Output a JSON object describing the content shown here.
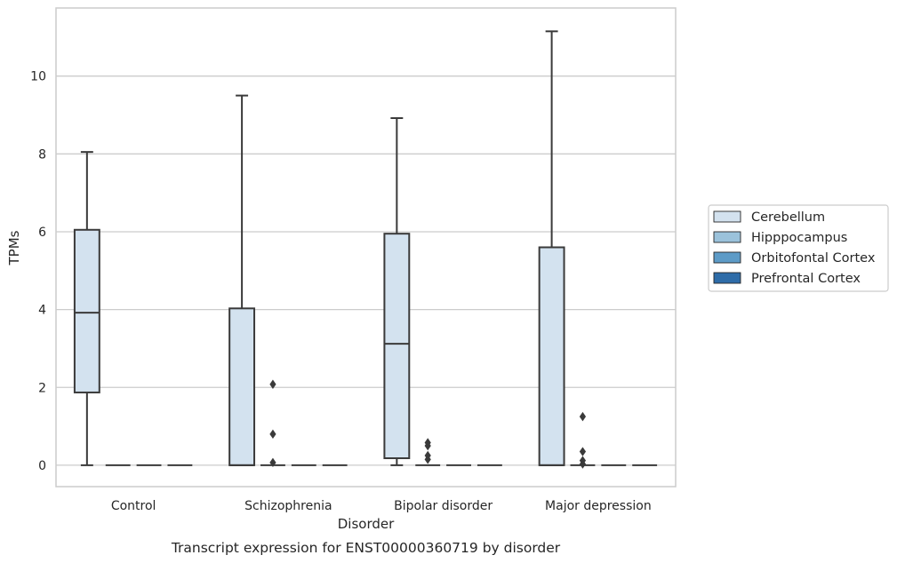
{
  "chart_data": {
    "type": "box",
    "title": "",
    "caption": "Transcript expression for ENST00000360719 by disorder",
    "xlabel": "Disorder",
    "ylabel": "TPMs",
    "ylim": [
      -0.55,
      11.75
    ],
    "yticks": [
      0,
      2,
      4,
      6,
      8,
      10
    ],
    "grid": true,
    "legend_position": "right",
    "categories": [
      "Control",
      "Schizophrenia",
      "Bipolar disorder",
      "Major depression"
    ],
    "series": [
      {
        "name": "Cerebellum",
        "color": "#d3e2ef",
        "boxes": [
          {
            "whislo": 0,
            "q1": 1.87,
            "med": 3.92,
            "q3": 6.05,
            "whishi": 8.05,
            "fliers": []
          },
          {
            "whislo": 0,
            "q1": 0,
            "med": 0,
            "q3": 4.03,
            "whishi": 9.5,
            "fliers": []
          },
          {
            "whislo": 0,
            "q1": 0.18,
            "med": 3.12,
            "q3": 5.95,
            "whishi": 8.92,
            "fliers": []
          },
          {
            "whislo": 0,
            "q1": 0,
            "med": 0,
            "q3": 5.6,
            "whishi": 11.15,
            "fliers": []
          }
        ]
      },
      {
        "name": "Hipppocampus",
        "color": "#9bc2db",
        "boxes": [
          {
            "whislo": 0,
            "q1": 0,
            "med": 0,
            "q3": 0,
            "whishi": 0,
            "fliers": []
          },
          {
            "whislo": 0,
            "q1": 0,
            "med": 0,
            "q3": 0,
            "whishi": 0,
            "fliers": [
              2.08,
              0.8,
              0.07
            ]
          },
          {
            "whislo": 0,
            "q1": 0,
            "med": 0,
            "q3": 0,
            "whishi": 0,
            "fliers": [
              0.25,
              0.58,
              0.5,
              0.15
            ]
          },
          {
            "whislo": 0,
            "q1": 0,
            "med": 0,
            "q3": 0,
            "whishi": 0,
            "fliers": [
              1.25,
              0.35,
              0.12,
              0.03
            ]
          }
        ]
      },
      {
        "name": "Orbitofontal Cortex",
        "color": "#5d9bc7",
        "boxes": [
          {
            "whislo": 0,
            "q1": 0,
            "med": 0,
            "q3": 0,
            "whishi": 0,
            "fliers": []
          },
          {
            "whislo": 0,
            "q1": 0,
            "med": 0,
            "q3": 0,
            "whishi": 0,
            "fliers": []
          },
          {
            "whislo": 0,
            "q1": 0,
            "med": 0,
            "q3": 0,
            "whishi": 0,
            "fliers": []
          },
          {
            "whislo": 0,
            "q1": 0,
            "med": 0,
            "q3": 0,
            "whishi": 0,
            "fliers": []
          }
        ]
      },
      {
        "name": "Prefrontal Cortex",
        "color": "#2e6ca8",
        "boxes": [
          {
            "whislo": 0,
            "q1": 0,
            "med": 0,
            "q3": 0,
            "whishi": 0,
            "fliers": []
          },
          {
            "whislo": 0,
            "q1": 0,
            "med": 0,
            "q3": 0,
            "whishi": 0,
            "fliers": []
          },
          {
            "whislo": 0,
            "q1": 0,
            "med": 0,
            "q3": 0,
            "whishi": 0,
            "fliers": []
          },
          {
            "whislo": 0,
            "q1": 0,
            "med": 0,
            "q3": 0,
            "whishi": 0,
            "fliers": []
          }
        ]
      }
    ],
    "colors": {
      "grid": "#cccccc",
      "frame": "#cccccc",
      "line": "#3a3a3a",
      "text": "#262626"
    }
  }
}
